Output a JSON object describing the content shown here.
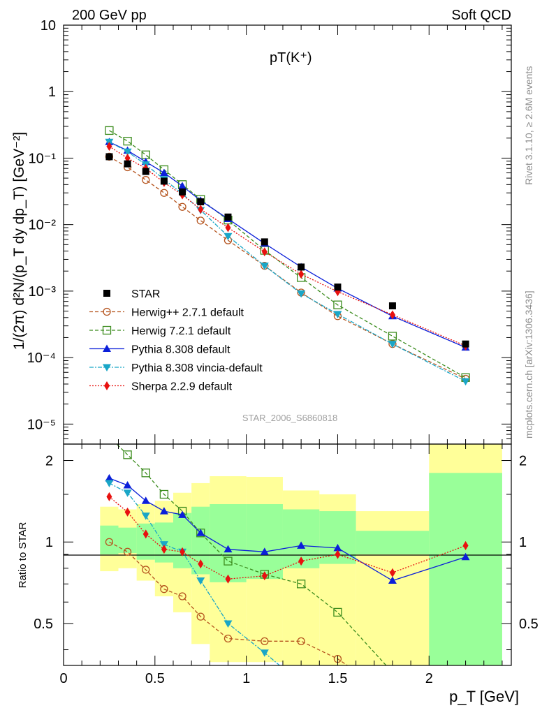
{
  "header": {
    "left": "200 GeV pp",
    "right": "Soft QCD"
  },
  "side": {
    "rivet": "Rivet 3.1.10, ≥ 2.6M events",
    "mcplots": "mcplots.cern.ch [arXiv:1306.3436]"
  },
  "chart_data": {
    "type": "scatter",
    "title": "pT(K⁺)",
    "watermark": "STAR_2006_S6860818",
    "xlabel": "p_T [GeV]",
    "ylabel": "1/(2π) d²N/(p_T dy dp_T) [GeV⁻²]",
    "ratio_ylabel": "Ratio to STAR",
    "xlim": [
      0,
      2.45
    ],
    "ylim_main": [
      5e-06,
      10
    ],
    "yscale_main": "log",
    "ylim_ratio": [
      0.35,
      2.3
    ],
    "yscale_ratio": "log",
    "x_ticks": [
      0,
      0.5,
      1,
      1.5,
      2
    ],
    "x_tick_labels": [
      "0",
      "0.5",
      "1",
      "1.5",
      "2"
    ],
    "main_tick_labels": [
      "10",
      "1",
      "10⁻¹",
      "10⁻²",
      "10⁻³",
      "10⁻⁴",
      "10⁻⁵"
    ],
    "ratio_tick_labels": [
      "2",
      "1",
      "0.5"
    ],
    "legend_position": "bottom-left",
    "data": {
      "name": "STAR",
      "x": [
        0.25,
        0.35,
        0.45,
        0.55,
        0.65,
        0.75,
        0.9,
        1.1,
        1.3,
        1.5,
        1.8,
        2.2
      ],
      "y": [
        0.105,
        0.082,
        0.063,
        0.045,
        0.031,
        0.022,
        0.013,
        0.0055,
        0.0023,
        0.00115,
        0.0006,
        0.00016
      ],
      "band_edges": [
        0.2,
        0.3,
        0.4,
        0.5,
        0.6,
        0.7,
        0.8,
        1.0,
        1.2,
        1.4,
        1.6,
        2.0,
        2.4
      ],
      "band_inner_lo": [
        0.9,
        0.91,
        0.86,
        0.84,
        0.8,
        0.76,
        0.71,
        0.73,
        0.8,
        0.83,
        0.9,
        0.35
      ],
      "band_inner_hi": [
        1.15,
        1.13,
        1.17,
        1.18,
        1.28,
        1.35,
        1.38,
        1.38,
        1.32,
        1.3,
        1.1,
        1.8
      ],
      "band_outer_lo": [
        0.78,
        0.8,
        0.72,
        0.63,
        0.55,
        0.42,
        0.36,
        0.36,
        0.35,
        0.35,
        0.35,
        0.35
      ],
      "band_outer_hi": [
        1.35,
        1.32,
        1.38,
        1.42,
        1.52,
        1.65,
        1.75,
        1.74,
        1.55,
        1.5,
        1.3,
        2.3
      ]
    },
    "series": [
      {
        "name": "Herwig++ 2.7.1 default",
        "color": "#b5541e",
        "dash": "5,3",
        "marker": "circle-open",
        "x": [
          0.25,
          0.35,
          0.45,
          0.55,
          0.65,
          0.75,
          0.9,
          1.1,
          1.3,
          1.5,
          1.8,
          2.2
        ],
        "y": [
          0.105,
          0.073,
          0.047,
          0.03,
          0.0185,
          0.0115,
          0.0058,
          0.0024,
          0.00095,
          0.00042,
          0.00016,
          4.8e-05
        ],
        "ratio": [
          1.0,
          0.92,
          0.79,
          0.67,
          0.63,
          0.53,
          0.44,
          0.43,
          0.43,
          0.37,
          0.27,
          0.3
        ]
      },
      {
        "name": "Herwig 7.2.1 default",
        "color": "#3c8c1e",
        "dash": "5,3",
        "marker": "square-open",
        "x": [
          0.25,
          0.35,
          0.45,
          0.55,
          0.65,
          0.75,
          0.9,
          1.1,
          1.3,
          1.5,
          1.8,
          2.2
        ],
        "y": [
          0.26,
          0.18,
          0.112,
          0.067,
          0.04,
          0.024,
          0.0117,
          0.0041,
          0.0016,
          0.00062,
          0.00021,
          5e-05
        ],
        "ratio": [
          2.45,
          2.1,
          1.8,
          1.5,
          1.3,
          1.08,
          0.85,
          0.76,
          0.7,
          0.55,
          0.33,
          0.31
        ]
      },
      {
        "name": "Pythia 8.308 default",
        "color": "#0b1fd9",
        "dash": "",
        "marker": "triangle-up",
        "x": [
          0.25,
          0.35,
          0.45,
          0.55,
          0.65,
          0.75,
          0.9,
          1.1,
          1.3,
          1.5,
          1.8,
          2.2
        ],
        "y": [
          0.175,
          0.13,
          0.088,
          0.06,
          0.038,
          0.023,
          0.0122,
          0.0052,
          0.0023,
          0.0011,
          0.00042,
          0.000142
        ],
        "ratio": [
          1.72,
          1.62,
          1.42,
          1.3,
          1.26,
          1.08,
          0.94,
          0.92,
          0.97,
          0.95,
          0.72,
          0.88
        ]
      },
      {
        "name": "Pythia 8.308 vincia-default",
        "color": "#1aa6c7",
        "dash": "6,2,2,2",
        "marker": "triangle-down",
        "x": [
          0.25,
          0.35,
          0.45,
          0.55,
          0.65,
          0.75,
          0.9,
          1.1,
          1.3,
          1.5,
          1.8,
          2.2
        ],
        "y": [
          0.175,
          0.125,
          0.08,
          0.048,
          0.029,
          0.0165,
          0.0067,
          0.0024,
          0.00092,
          0.00045,
          0.00016,
          4.4e-05
        ],
        "ratio": [
          1.65,
          1.52,
          1.25,
          0.98,
          0.92,
          0.72,
          0.5,
          0.39,
          0.3,
          0.3,
          0.3,
          0.3
        ]
      },
      {
        "name": "Sherpa 2.2.9 default",
        "color": "#e8110f",
        "dash": "2,2",
        "marker": "diamond",
        "x": [
          0.25,
          0.35,
          0.45,
          0.55,
          0.65,
          0.75,
          0.9,
          1.1,
          1.3,
          1.5,
          1.8,
          2.2
        ],
        "y": [
          0.15,
          0.1,
          0.07,
          0.043,
          0.028,
          0.017,
          0.009,
          0.0039,
          0.0018,
          0.00098,
          0.00044,
          0.00015
        ],
        "ratio": [
          1.47,
          1.29,
          1.07,
          0.94,
          0.92,
          0.83,
          0.73,
          0.75,
          0.85,
          0.9,
          0.77,
          0.97
        ]
      }
    ]
  }
}
